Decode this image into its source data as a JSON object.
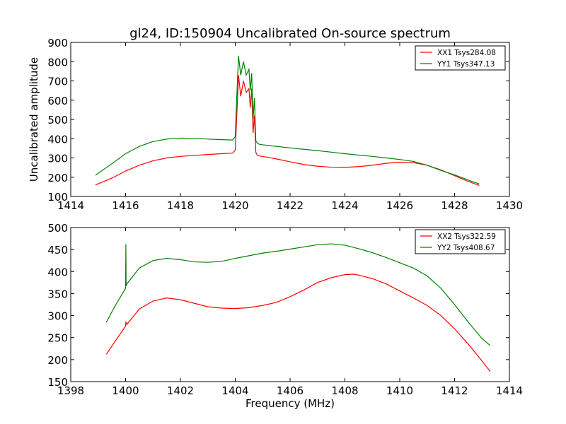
{
  "chart_data": [
    {
      "type": "line",
      "title": "gl24, ID:150904 Uncalibrated On-source spectrum",
      "xlabel": "",
      "ylabel": "Uncalibrated amplitude",
      "xlim": [
        1414,
        1430
      ],
      "ylim": [
        100,
        900
      ],
      "xticks": [
        1414,
        1416,
        1418,
        1420,
        1422,
        1424,
        1426,
        1428,
        1430
      ],
      "yticks": [
        100,
        200,
        300,
        400,
        500,
        600,
        700,
        800,
        900
      ],
      "grid": false,
      "legend_position": "top-right",
      "series": [
        {
          "name": "XX1 Tsys284.08",
          "color": "#ff0000",
          "x": [
            1414.9,
            1415.5,
            1416.0,
            1416.5,
            1417.0,
            1417.5,
            1418.0,
            1418.5,
            1419.0,
            1419.5,
            1419.9,
            1420.0,
            1420.05,
            1420.12,
            1420.2,
            1420.3,
            1420.4,
            1420.5,
            1420.55,
            1420.6,
            1420.65,
            1420.7,
            1420.75,
            1420.8,
            1420.85,
            1420.9,
            1421.2,
            1421.5,
            1422.0,
            1422.5,
            1423.0,
            1423.5,
            1424.0,
            1424.5,
            1425.0,
            1425.5,
            1426.0,
            1426.5,
            1427.0,
            1427.5,
            1428.0,
            1428.5,
            1428.9
          ],
          "y": [
            160,
            195,
            232,
            262,
            285,
            300,
            308,
            313,
            318,
            322,
            325,
            340,
            500,
            730,
            620,
            700,
            640,
            660,
            560,
            660,
            430,
            520,
            330,
            315,
            312,
            310,
            303,
            295,
            280,
            266,
            257,
            252,
            251,
            255,
            262,
            272,
            278,
            276,
            262,
            238,
            208,
            178,
            157
          ]
        },
        {
          "name": "YY1 Tsys347.13",
          "color": "#008000",
          "x": [
            1414.9,
            1415.5,
            1416.0,
            1416.5,
            1417.0,
            1417.5,
            1418.0,
            1418.5,
            1419.0,
            1419.5,
            1419.9,
            1420.0,
            1420.05,
            1420.12,
            1420.2,
            1420.3,
            1420.4,
            1420.5,
            1420.55,
            1420.6,
            1420.65,
            1420.7,
            1420.75,
            1420.8,
            1420.85,
            1420.9,
            1421.2,
            1421.5,
            1422.0,
            1422.5,
            1423.0,
            1423.5,
            1424.0,
            1424.5,
            1425.0,
            1425.5,
            1426.0,
            1426.5,
            1427.0,
            1427.5,
            1428.0,
            1428.5,
            1428.9
          ],
          "y": [
            210,
            270,
            322,
            360,
            385,
            398,
            403,
            402,
            398,
            395,
            393,
            410,
            600,
            830,
            730,
            800,
            730,
            760,
            650,
            740,
            500,
            610,
            390,
            378,
            373,
            370,
            365,
            360,
            352,
            345,
            338,
            330,
            322,
            315,
            308,
            300,
            292,
            282,
            262,
            235,
            212,
            185,
            165
          ]
        }
      ]
    },
    {
      "type": "line",
      "title": "",
      "xlabel": "Frequency (MHz)",
      "ylabel": "",
      "xlim": [
        1398,
        1414
      ],
      "ylim": [
        150,
        500
      ],
      "xticks": [
        1398,
        1400,
        1402,
        1404,
        1406,
        1408,
        1410,
        1412,
        1414
      ],
      "yticks": [
        150,
        200,
        250,
        300,
        350,
        400,
        450,
        500
      ],
      "grid": false,
      "legend_position": "top-right",
      "series": [
        {
          "name": "XX2 Tsys322.59",
          "color": "#ff0000",
          "x": [
            1399.3,
            1399.6,
            1400.0,
            1400.01,
            1400.05,
            1400.5,
            1401.0,
            1401.5,
            1402.0,
            1402.5,
            1403.0,
            1403.5,
            1404.0,
            1404.5,
            1405.0,
            1405.5,
            1406.0,
            1406.5,
            1407.0,
            1407.5,
            1408.0,
            1408.3,
            1408.5,
            1409.0,
            1409.5,
            1410.0,
            1410.5,
            1411.0,
            1411.5,
            1412.0,
            1412.5,
            1413.0,
            1413.3
          ],
          "y": [
            212,
            240,
            276,
            286,
            280,
            315,
            333,
            340,
            336,
            328,
            320,
            317,
            316,
            318,
            323,
            330,
            343,
            358,
            375,
            386,
            393,
            394,
            392,
            384,
            372,
            356,
            340,
            323,
            300,
            270,
            235,
            197,
            173
          ]
        },
        {
          "name": "YY2 Tsys408.67",
          "color": "#008000",
          "x": [
            1399.3,
            1399.6,
            1400.0,
            1400.01,
            1400.02,
            1400.05,
            1400.5,
            1401.0,
            1401.5,
            1402.0,
            1402.5,
            1403.0,
            1403.5,
            1404.0,
            1404.5,
            1405.0,
            1405.5,
            1406.0,
            1406.5,
            1407.0,
            1407.5,
            1408.0,
            1408.5,
            1409.0,
            1409.5,
            1410.0,
            1410.5,
            1411.0,
            1411.5,
            1412.0,
            1412.5,
            1413.0,
            1413.3
          ],
          "y": [
            285,
            320,
            362,
            462,
            367,
            372,
            408,
            425,
            430,
            427,
            422,
            421,
            423,
            430,
            436,
            442,
            446,
            451,
            456,
            461,
            463,
            460,
            452,
            443,
            432,
            420,
            408,
            390,
            362,
            325,
            285,
            248,
            232
          ]
        }
      ]
    }
  ]
}
